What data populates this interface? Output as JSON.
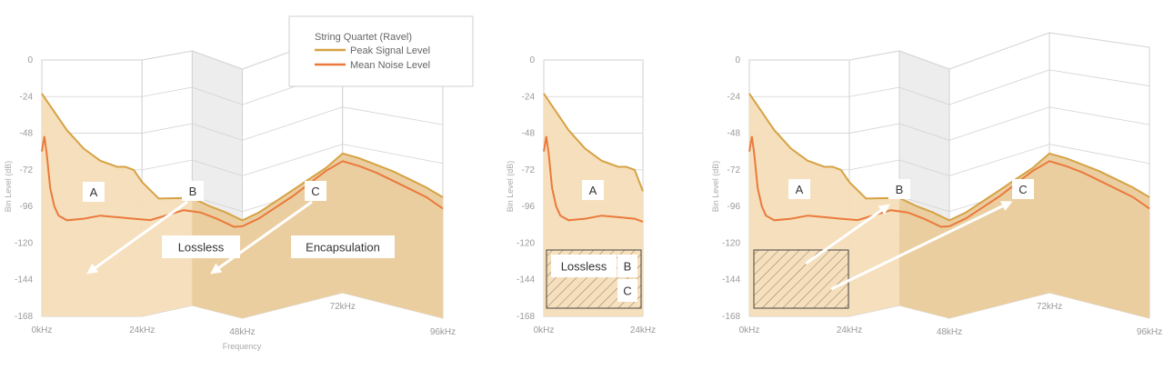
{
  "colors": {
    "peak": "#d6a244",
    "noise": "#ea7a3c",
    "fill": "#f5ddb8",
    "fill_dark": "#e9c999",
    "shade": "#ededed",
    "grid": "#d2d2d2",
    "arrow": "#ffffff"
  },
  "legend": {
    "title": "String Quartet (Ravel)",
    "peak": "Peak Signal Level",
    "noise": "Mean Noise Level"
  },
  "chart_data": [
    {
      "type": "area",
      "ylabel": "Bin Level (dB)",
      "xlabel": "Frequency",
      "ylim": [
        -168,
        0
      ],
      "yticks": [
        "0",
        "-24",
        "-48",
        "-72",
        "-96",
        "-120",
        "-144",
        "-168"
      ],
      "xticks": [
        "0kHz",
        "24kHz",
        "48kHz",
        "72kHz",
        "96kHz"
      ],
      "xlim": [
        0,
        96
      ],
      "series": [
        {
          "name": "Peak Signal Level",
          "x": [
            0,
            2,
            4,
            6,
            8,
            10,
            14,
            18,
            20,
            22,
            24,
            28,
            32,
            36,
            40,
            44,
            48,
            52,
            56,
            60,
            64,
            68,
            72,
            76,
            80,
            84,
            88,
            92,
            96
          ],
          "y": [
            -22,
            -30,
            -38,
            -46,
            -52,
            -58,
            -66,
            -70,
            -70,
            -72,
            -80,
            -93,
            -95,
            -97,
            -99,
            -100,
            -102,
            -100,
            -96,
            -92,
            -88,
            -84,
            -78,
            -79,
            -81,
            -83,
            -86,
            -89,
            -93
          ]
        },
        {
          "name": "Mean Noise Level",
          "x": [
            0,
            0.6,
            1.2,
            2,
            3,
            4,
            6,
            10,
            14,
            18,
            22,
            26,
            30,
            34,
            38,
            42,
            46,
            48,
            52,
            56,
            60,
            64,
            68,
            72,
            76,
            80,
            84,
            88,
            92,
            96
          ],
          "y": [
            -60,
            -50,
            -62,
            -84,
            -96,
            -102,
            -105,
            -104,
            -102,
            -103,
            -104,
            -106,
            -105,
            -104,
            -105,
            -106,
            -108,
            -106,
            -104,
            -100,
            -96,
            -91,
            -86,
            -83,
            -84,
            -86,
            -89,
            -92,
            -95,
            -100
          ]
        }
      ],
      "annotations": [
        "A",
        "B",
        "C",
        "Lossless",
        "Encapsulation"
      ]
    },
    {
      "type": "area",
      "ylabel": "Bin Level (dB)",
      "ylim": [
        -168,
        0
      ],
      "yticks": [
        "0",
        "-24",
        "-48",
        "-72",
        "-96",
        "-120",
        "-144",
        "-168"
      ],
      "xticks": [
        "0kHz",
        "24kHz"
      ],
      "xlim": [
        0,
        24
      ],
      "series": [
        {
          "name": "Peak Signal Level",
          "x": [
            0,
            2,
            4,
            6,
            8,
            10,
            14,
            18,
            20,
            22,
            24
          ],
          "y": [
            -22,
            -30,
            -38,
            -46,
            -52,
            -58,
            -66,
            -70,
            -70,
            -72,
            -86
          ]
        },
        {
          "name": "Mean Noise Level",
          "x": [
            0,
            0.6,
            1.2,
            2,
            3,
            4,
            6,
            10,
            14,
            18,
            22,
            24
          ],
          "y": [
            -60,
            -50,
            -62,
            -84,
            -96,
            -102,
            -105,
            -104,
            -102,
            -103,
            -104,
            -106
          ]
        }
      ],
      "annotations": [
        "A",
        "Lossless",
        "B",
        "C"
      ]
    },
    {
      "type": "area",
      "ylabel": "Bin Level (dB)",
      "ylim": [
        -168,
        0
      ],
      "yticks": [
        "0",
        "-24",
        "-48",
        "-72",
        "-96",
        "-120",
        "-144",
        "-168"
      ],
      "xticks": [
        "0kHz",
        "24kHz",
        "48kHz",
        "72kHz",
        "96kHz"
      ],
      "xlim": [
        0,
        96
      ],
      "series": [
        {
          "name": "Peak Signal Level",
          "x": [
            0,
            2,
            4,
            6,
            8,
            10,
            14,
            18,
            20,
            22,
            24,
            28,
            32,
            36,
            40,
            44,
            48,
            52,
            56,
            60,
            64,
            68,
            72,
            76,
            80,
            84,
            88,
            92,
            96
          ],
          "y": [
            -22,
            -30,
            -38,
            -46,
            -52,
            -58,
            -66,
            -70,
            -70,
            -72,
            -80,
            -93,
            -95,
            -97,
            -99,
            -100,
            -102,
            -100,
            -96,
            -92,
            -88,
            -84,
            -78,
            -79,
            -81,
            -83,
            -86,
            -89,
            -93
          ]
        },
        {
          "name": "Mean Noise Level",
          "x": [
            0,
            0.6,
            1.2,
            2,
            3,
            4,
            6,
            10,
            14,
            18,
            22,
            26,
            30,
            34,
            38,
            42,
            46,
            48,
            52,
            56,
            60,
            64,
            68,
            72,
            76,
            80,
            84,
            88,
            92,
            96
          ],
          "y": [
            -60,
            -50,
            -62,
            -84,
            -96,
            -102,
            -105,
            -104,
            -102,
            -103,
            -104,
            -106,
            -105,
            -104,
            -105,
            -106,
            -108,
            -106,
            -104,
            -100,
            -96,
            -91,
            -86,
            -83,
            -84,
            -86,
            -89,
            -92,
            -95,
            -100
          ]
        }
      ],
      "annotations": [
        "A",
        "B",
        "C"
      ]
    }
  ]
}
